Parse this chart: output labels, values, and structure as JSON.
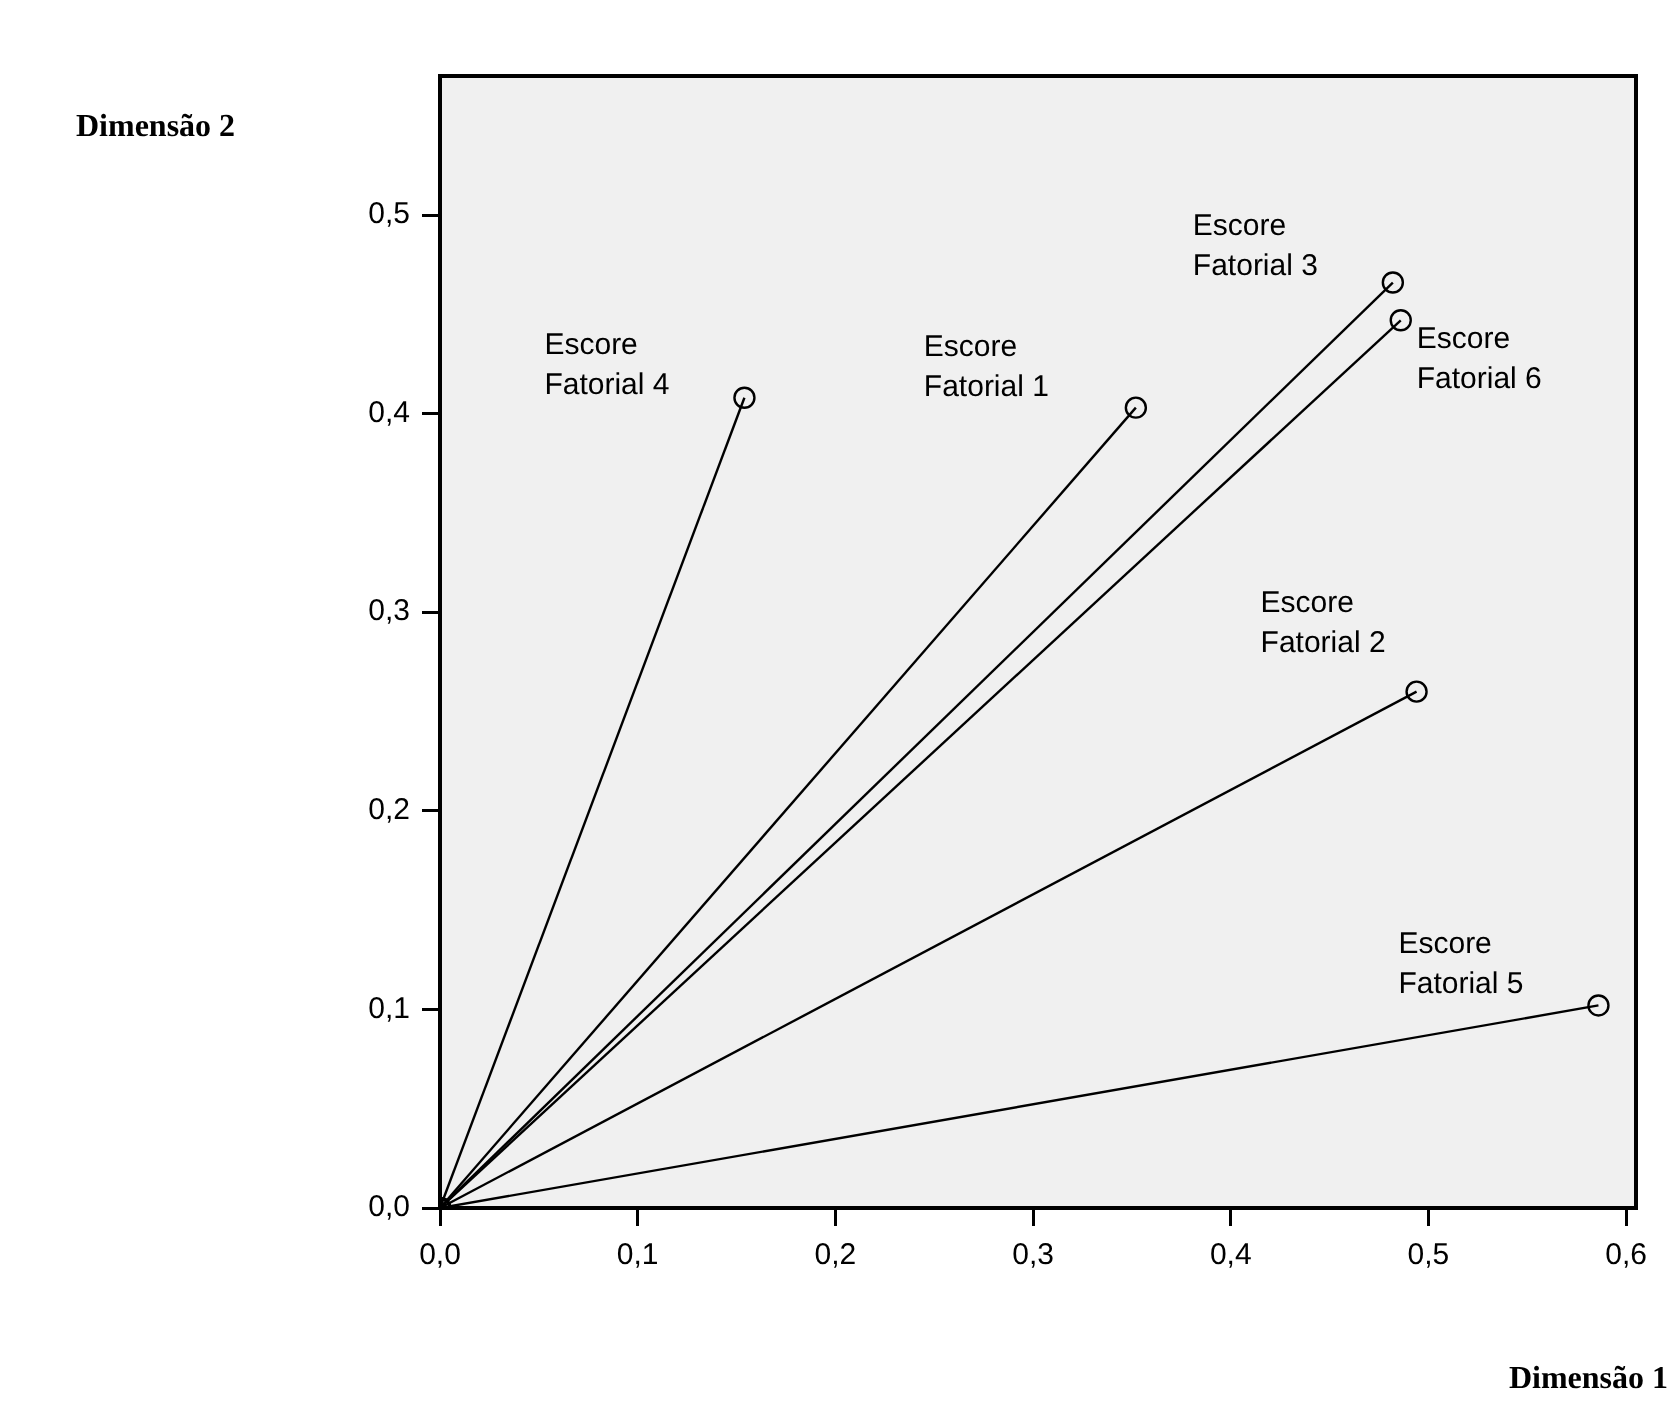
{
  "chart_data": {
    "type": "line",
    "xlabel": "Dimensão 1",
    "ylabel": "Dimensão 2",
    "xlim": [
      0,
      0.605
    ],
    "ylim": [
      0,
      0.57
    ],
    "xticks": [
      {
        "value": 0,
        "label": "0,0"
      },
      {
        "value": 0.1,
        "label": "0,1"
      },
      {
        "value": 0.2,
        "label": "0,2"
      },
      {
        "value": 0.3,
        "label": "0,3"
      },
      {
        "value": 0.4,
        "label": "0,4"
      },
      {
        "value": 0.5,
        "label": "0,5"
      },
      {
        "value": 0.6,
        "label": "0,6"
      }
    ],
    "yticks": [
      {
        "value": 0,
        "label": "0,0"
      },
      {
        "value": 0.1,
        "label": "0,1"
      },
      {
        "value": 0.2,
        "label": "0,2"
      },
      {
        "value": 0.3,
        "label": "0,3"
      },
      {
        "value": 0.4,
        "label": "0,4"
      },
      {
        "value": 0.5,
        "label": "0,5"
      }
    ],
    "marker": "circle",
    "line_style": "solid",
    "legend": false,
    "series": [
      {
        "name": "Escore Fatorial 1",
        "color": "#000000",
        "x": [
          0,
          0.352
        ],
        "values": [
          0,
          0.403
        ]
      },
      {
        "name": "Escore Fatorial 2",
        "color": "#000000",
        "x": [
          0,
          0.494
        ],
        "values": [
          0,
          0.26
        ]
      },
      {
        "name": "Escore Fatorial 3",
        "color": "#000000",
        "x": [
          0,
          0.482
        ],
        "values": [
          0,
          0.466
        ]
      },
      {
        "name": "Escore Fatorial 4",
        "color": "#000000",
        "x": [
          0,
          0.154
        ],
        "values": [
          0,
          0.408
        ]
      },
      {
        "name": "Escore Fatorial 5",
        "color": "#000000",
        "x": [
          0,
          0.586
        ],
        "values": [
          0,
          0.102
        ]
      },
      {
        "name": "Escore Fatorial 6",
        "color": "#000000",
        "x": [
          0,
          0.486
        ],
        "values": [
          0,
          0.447
        ]
      }
    ]
  }
}
